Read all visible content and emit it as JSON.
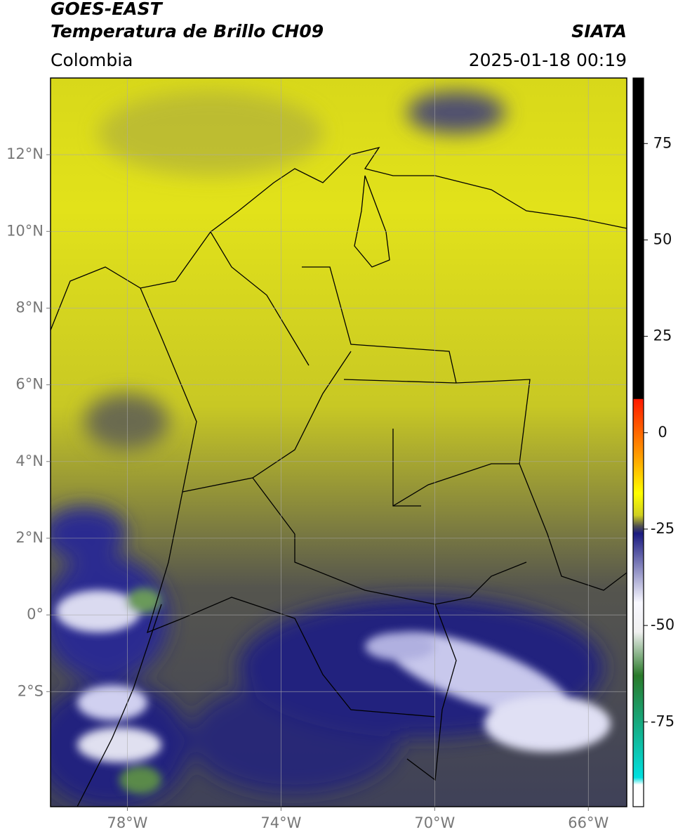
{
  "header": {
    "title": "GOES-EAST",
    "subtitle": "Temperatura de Brillo CH09",
    "source": "SIATA",
    "region": "Colombia",
    "datetime": "2025-01-18 00:19"
  },
  "map": {
    "xlim": [
      -80,
      -65
    ],
    "ylim": [
      -5,
      14
    ],
    "xticks": [
      {
        "value": -78,
        "label": "78°W"
      },
      {
        "value": -74,
        "label": "74°W"
      },
      {
        "value": -70,
        "label": "70°W"
      },
      {
        "value": -66,
        "label": "66°W"
      }
    ],
    "yticks": [
      {
        "value": 12,
        "label": "12°N"
      },
      {
        "value": 10,
        "label": "10°N"
      },
      {
        "value": 8,
        "label": "8°N"
      },
      {
        "value": 6,
        "label": "6°N"
      },
      {
        "value": 4,
        "label": "4°N"
      },
      {
        "value": 2,
        "label": "2°N"
      },
      {
        "value": 0,
        "label": "0°"
      },
      {
        "value": -2,
        "label": "2°S"
      }
    ],
    "grid": true
  },
  "colorbar": {
    "lim": [
      -97,
      92
    ],
    "ticks": [
      75,
      50,
      25,
      0,
      -25,
      -50,
      -75
    ]
  }
}
